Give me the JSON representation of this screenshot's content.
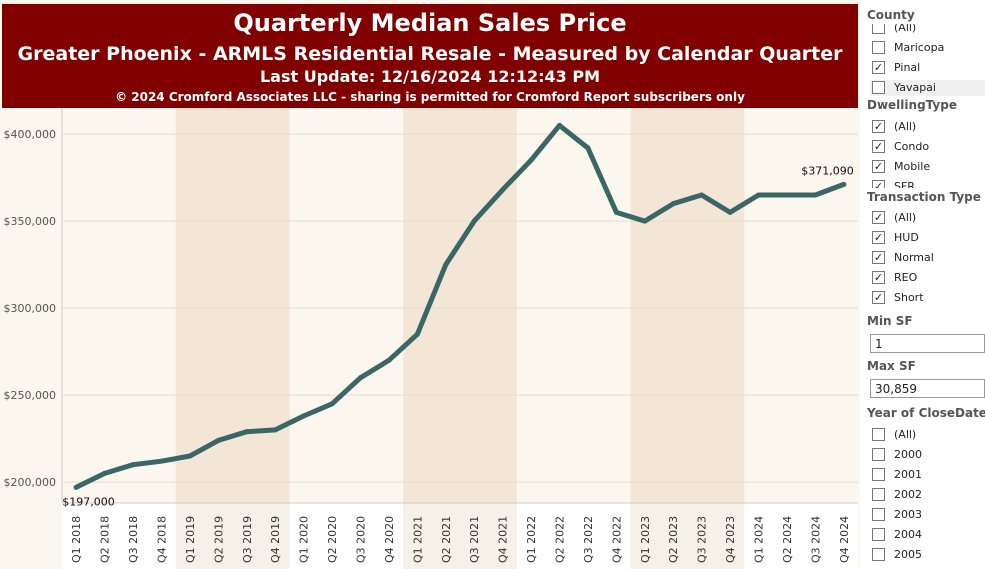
{
  "banner": {
    "title": "Quarterly Median Sales Price",
    "subtitle": "Greater Phoenix - ARMLS Residential Resale - Measured by Calendar Quarter",
    "update": "Last Update: 12/16/2024 12:12:43 PM",
    "copyright": "© 2024 Cromford Associates LLC - sharing is permitted for Cromford Report subscribers only"
  },
  "colors": {
    "banner": "#800000",
    "line": "#3b6666",
    "band": "#f3e6d6",
    "bg": "#fbf6ee"
  },
  "chart_data": {
    "type": "line",
    "title": "Quarterly Median Sales Price",
    "categories": [
      "Q1 2018",
      "Q2 2018",
      "Q3 2018",
      "Q4 2018",
      "Q1 2019",
      "Q2 2019",
      "Q3 2019",
      "Q4 2019",
      "Q1 2020",
      "Q2 2020",
      "Q3 2020",
      "Q4 2020",
      "Q1 2021",
      "Q2 2021",
      "Q3 2021",
      "Q4 2021",
      "Q1 2022",
      "Q2 2022",
      "Q3 2022",
      "Q4 2022",
      "Q1 2023",
      "Q2 2023",
      "Q3 2023",
      "Q4 2023",
      "Q1 2024",
      "Q2 2024",
      "Q3 2024",
      "Q4 2024"
    ],
    "values": [
      197000,
      205000,
      210000,
      212000,
      215000,
      224000,
      229000,
      230000,
      238000,
      245000,
      260000,
      270000,
      285000,
      325000,
      350000,
      368000,
      385000,
      405000,
      392000,
      355000,
      350000,
      360000,
      365000,
      355000,
      365000,
      365000,
      365000,
      371090
    ],
    "y_ticks": [
      "$200,000",
      "$250,000",
      "$300,000",
      "$350,000",
      "$400,000"
    ],
    "ylim": [
      188000,
      415000
    ],
    "shaded_years": [
      "2019",
      "2021",
      "2023"
    ],
    "annotations": {
      "first": "$197,000",
      "last": "$371,090"
    }
  },
  "filters": {
    "county": {
      "title": "County",
      "items": [
        {
          "label": "(All)",
          "checked": false
        },
        {
          "label": "Maricopa",
          "checked": false
        },
        {
          "label": "Pinal",
          "checked": true
        },
        {
          "label": "Yavapai",
          "checked": false,
          "highlight": true
        }
      ]
    },
    "dwelling": {
      "title": "DwellingType",
      "items": [
        {
          "label": "(All)",
          "checked": true
        },
        {
          "label": "Condo",
          "checked": true
        },
        {
          "label": "Mobile",
          "checked": true
        },
        {
          "label": "SFR",
          "checked": true
        }
      ]
    },
    "transaction": {
      "title": "Transaction Type",
      "items": [
        {
          "label": "(All)",
          "checked": true
        },
        {
          "label": "HUD",
          "checked": true
        },
        {
          "label": "Normal",
          "checked": true
        },
        {
          "label": "REO",
          "checked": true
        },
        {
          "label": "Short",
          "checked": true
        }
      ]
    },
    "min_sf": {
      "title": "Min SF",
      "value": "1"
    },
    "max_sf": {
      "title": "Max SF",
      "value": "30,859"
    },
    "year": {
      "title": "Year of CloseDate",
      "items": [
        {
          "label": "(All)",
          "checked": false
        },
        {
          "label": "2000",
          "checked": false
        },
        {
          "label": "2001",
          "checked": false
        },
        {
          "label": "2002",
          "checked": false
        },
        {
          "label": "2003",
          "checked": false
        },
        {
          "label": "2004",
          "checked": false
        },
        {
          "label": "2005",
          "checked": false
        }
      ]
    }
  }
}
